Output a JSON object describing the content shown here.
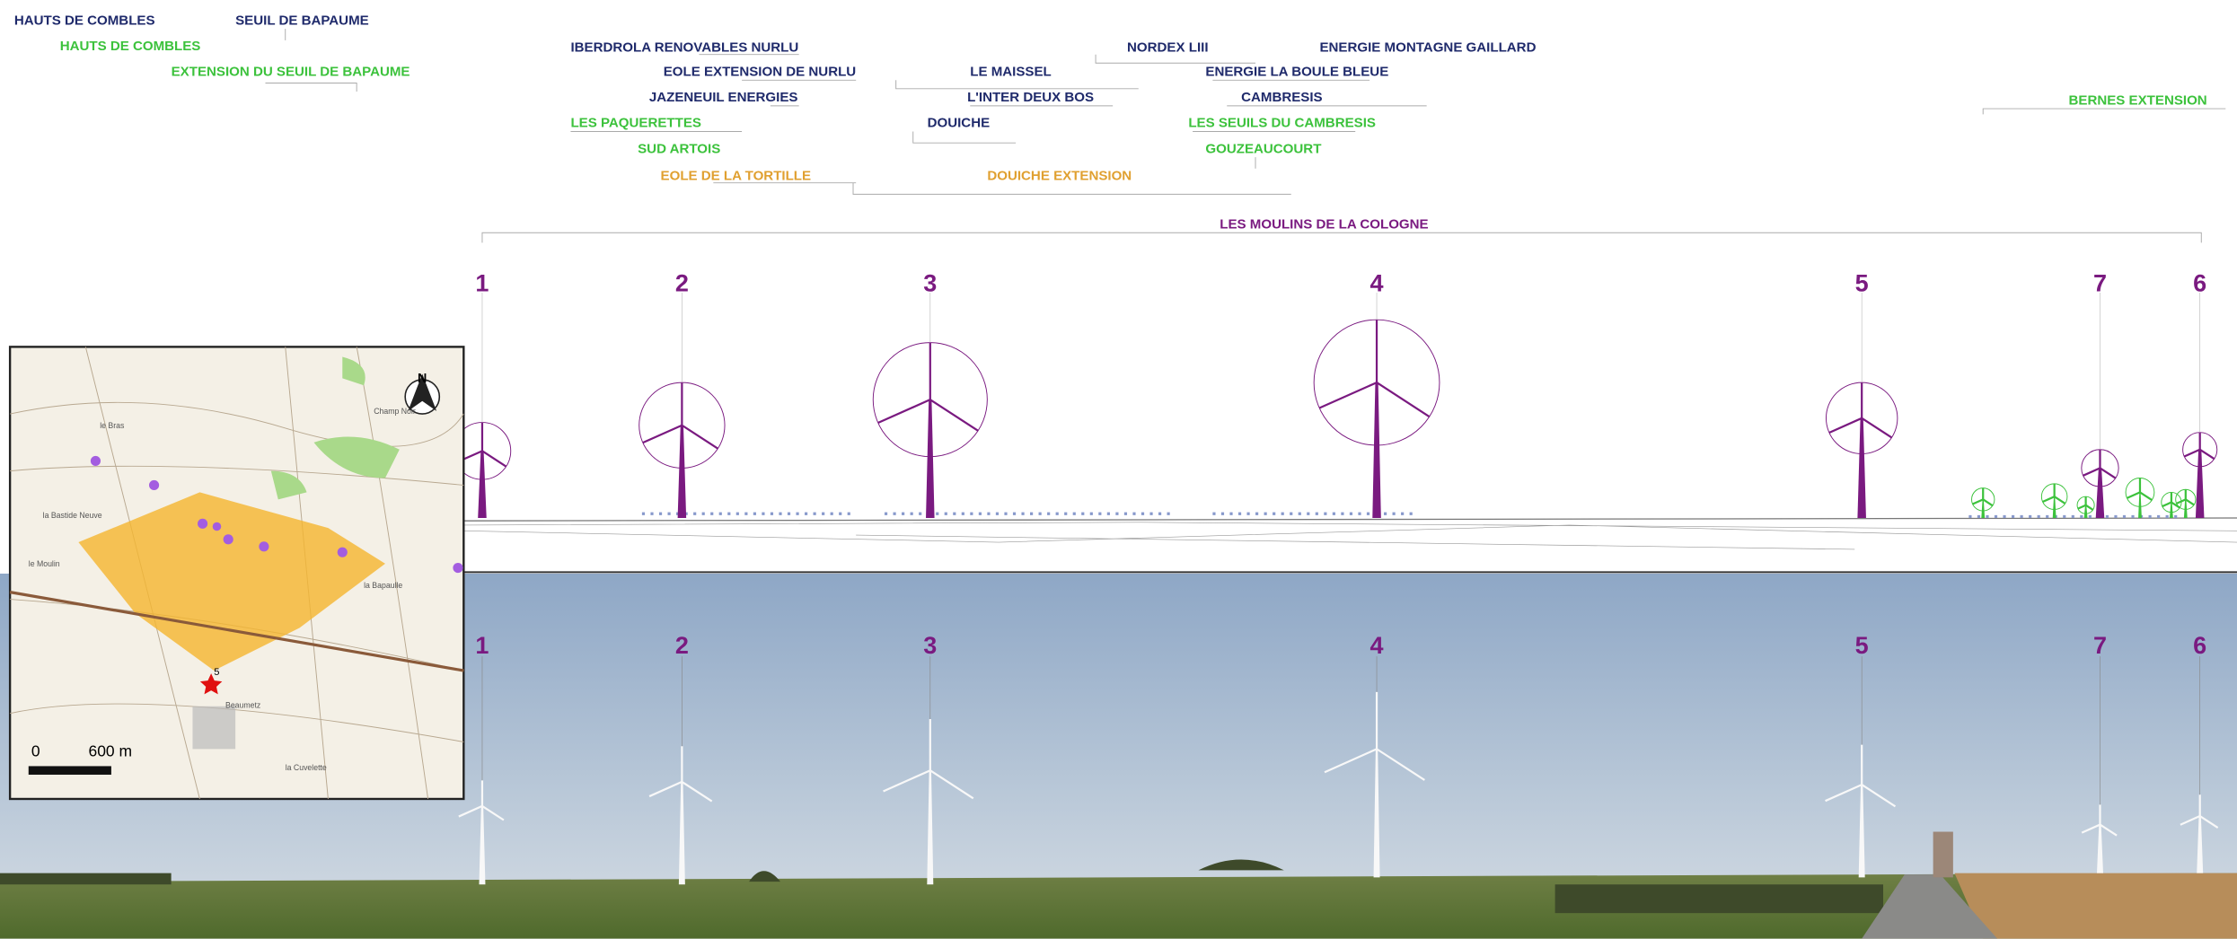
{
  "farm_labels": [
    {
      "text": "HAUTS DE COMBLES",
      "color": "#1f2a6b"
    },
    {
      "text": "SEUIL DE BAPAUME",
      "color": "#1f2a6b"
    },
    {
      "text": "HAUTS DE COMBLES",
      "color": "#3cc23c"
    },
    {
      "text": "EXTENSION DU SEUIL DE BAPAUME",
      "color": "#3cc23c"
    },
    {
      "text": "IBERDROLA RENOVABLES NURLU",
      "color": "#1f2a6b"
    },
    {
      "text": "EOLE EXTENSION DE NURLU",
      "color": "#1f2a6b"
    },
    {
      "text": "JAZENEUIL ENERGIES",
      "color": "#1f2a6b"
    },
    {
      "text": "LES PAQUERETTES",
      "color": "#3cc23c"
    },
    {
      "text": "SUD ARTOIS",
      "color": "#3cc23c"
    },
    {
      "text": "EOLE DE LA TORTILLE",
      "color": "#e0a030"
    },
    {
      "text": "LE MAISSEL",
      "color": "#1f2a6b"
    },
    {
      "text": "L'INTER DEUX BOS",
      "color": "#1f2a6b"
    },
    {
      "text": "DOUICHE",
      "color": "#1f2a6b"
    },
    {
      "text": "DOUICHE EXTENSION",
      "color": "#e0a030"
    },
    {
      "text": "NORDEX LIII",
      "color": "#1f2a6b"
    },
    {
      "text": "ENERGIE MONTAGNE GAILLARD",
      "color": "#1f2a6b"
    },
    {
      "text": "ENERGIE LA BOULE BLEUE",
      "color": "#1f2a6b"
    },
    {
      "text": "CAMBRESIS",
      "color": "#1f2a6b"
    },
    {
      "text": "LES SEUILS DU CAMBRESIS",
      "color": "#3cc23c"
    },
    {
      "text": "GOUZEAUCOURT",
      "color": "#3cc23c"
    },
    {
      "text": "BERNES EXTENSION",
      "color": "#3cc23c"
    },
    {
      "text": "LES MOULINS DE LA COLOGNE",
      "color": "#7a1a80"
    }
  ],
  "turbine_numbers": [
    "1",
    "2",
    "3",
    "4",
    "5",
    "7",
    "6"
  ],
  "map": {
    "north": "N",
    "scale_start": "0",
    "scale_end": "600 m",
    "viewpoint": "5",
    "places": [
      "Beaumetz",
      "le Moulin",
      "la Bastide Neuve",
      "Champ Noir",
      "la Bapaulle",
      "la Cuvelette",
      "le Bras"
    ]
  }
}
